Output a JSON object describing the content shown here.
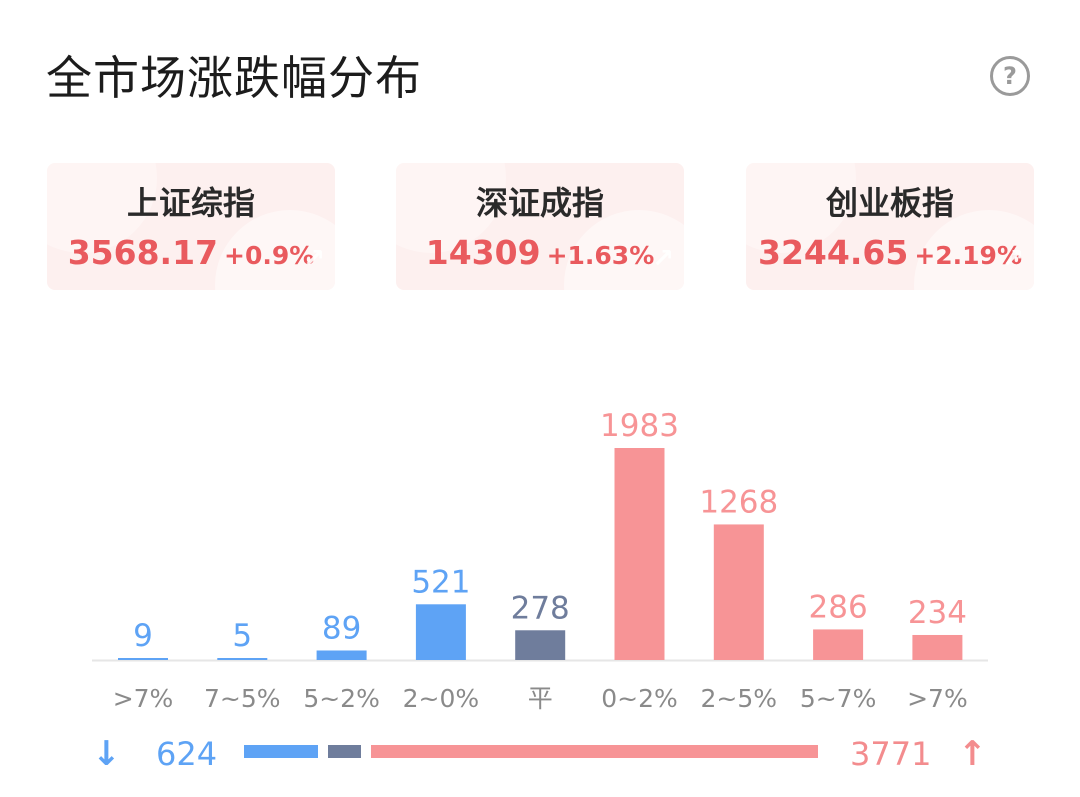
{
  "header": {
    "title": "全市场涨跌幅分布",
    "help_icon": "?"
  },
  "indices": [
    {
      "name": "上证综指",
      "value": "3568.17",
      "change": "+0.9%"
    },
    {
      "name": "深证成指",
      "value": "14309",
      "change": "+1.63%"
    },
    {
      "name": "创业板指",
      "value": "3244.65",
      "change": "+2.19%"
    }
  ],
  "colors": {
    "down": "#5ea3f5",
    "flat": "#6f7d9c",
    "up": "#f79496",
    "up_text": "#e95a5e",
    "card_bg": "#fdf0ef"
  },
  "chart_data": {
    "type": "bar",
    "categories": [
      ">7%",
      "7~5%",
      "5~2%",
      "2~0%",
      "平",
      "0~2%",
      "2~5%",
      "5~7%",
      ">7%"
    ],
    "values": [
      9,
      5,
      89,
      521,
      278,
      1983,
      1268,
      286,
      234
    ],
    "groups": [
      "down",
      "down",
      "down",
      "down",
      "flat",
      "up",
      "up",
      "up",
      "up"
    ],
    "ylim": [
      0,
      1983
    ]
  },
  "summary": {
    "down_count": "624",
    "up_count": "3771",
    "flat_count": 278
  }
}
